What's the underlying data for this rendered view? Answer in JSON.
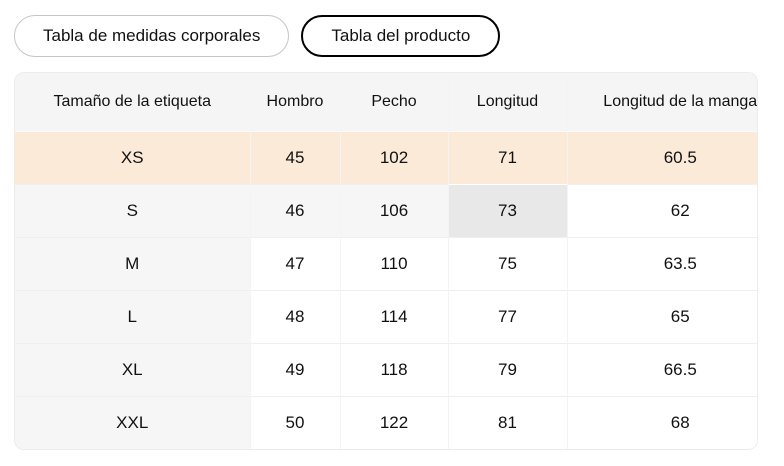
{
  "tabs": [
    {
      "label": "Tabla de medidas corporales",
      "selected": false
    },
    {
      "label": "Tabla del producto",
      "selected": true
    }
  ],
  "table": {
    "columns": [
      "Tamaño de la etiqueta",
      "Hombro",
      "Pecho",
      "Longitud",
      "Longitud de la manga"
    ],
    "rows": [
      {
        "size": "XS",
        "values": [
          "45",
          "102",
          "71",
          "60.5"
        ]
      },
      {
        "size": "S",
        "values": [
          "46",
          "106",
          "73",
          "62"
        ]
      },
      {
        "size": "M",
        "values": [
          "47",
          "110",
          "75",
          "63.5"
        ]
      },
      {
        "size": "L",
        "values": [
          "48",
          "114",
          "77",
          "65"
        ]
      },
      {
        "size": "XL",
        "values": [
          "49",
          "118",
          "79",
          "66.5"
        ]
      },
      {
        "size": "XXL",
        "values": [
          "50",
          "122",
          "81",
          "68"
        ]
      }
    ],
    "highlighted_row": "XS",
    "hovered_cell": {
      "row": "S",
      "column": "Longitud",
      "value": "73"
    }
  },
  "colors": {
    "selected_row_bg": "#fcead9",
    "hover_row_bg": "#f6f6f6",
    "hover_cell_bg": "#e8e8e8",
    "header_bg": "#f5f5f6",
    "row_label_col_bg": "#f6f6f6",
    "selected_tab_border": "#000000",
    "unselected_tab_border": "#c6c6c6"
  }
}
